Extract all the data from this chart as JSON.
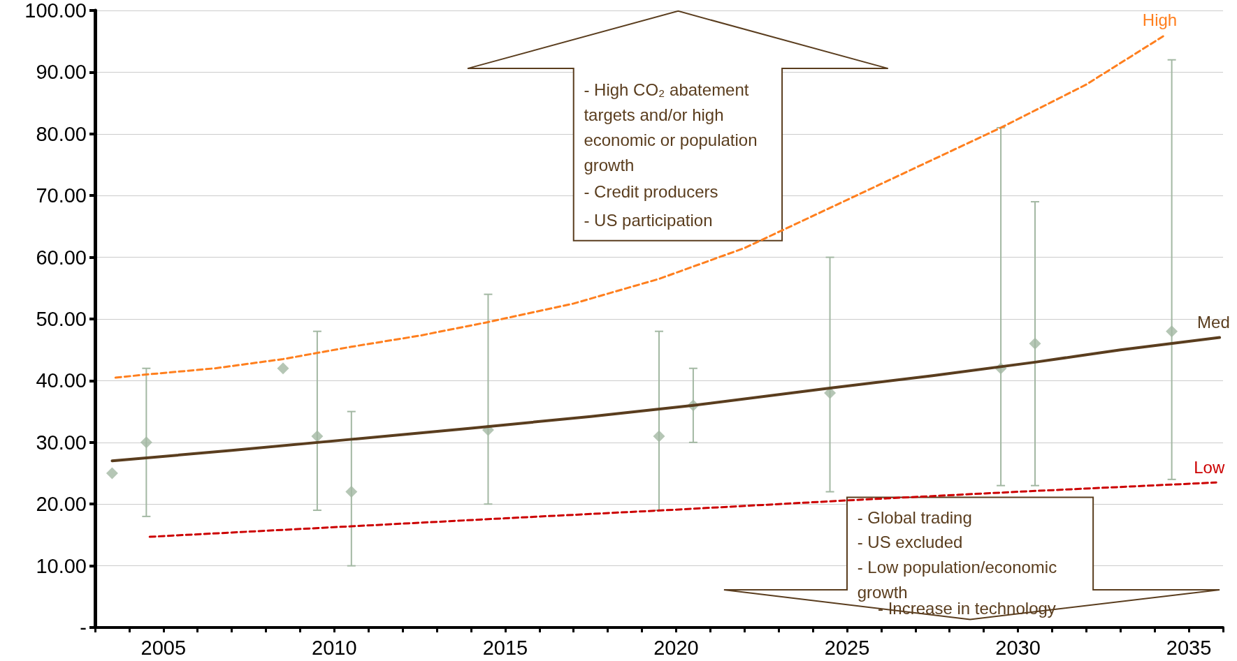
{
  "chart_data": {
    "type": "scatter",
    "annotations": [
      "- High CO₂ abatement targets and/or high economic or population growth",
      "- Credit producers",
      "- US participation",
      "- Global trading",
      "- US excluded",
      "- Low population/economic growth",
      "- Increase in technology"
    ],
    "xlim": [
      2003,
      2036
    ],
    "xticks": [
      {
        "value": 2003,
        "label": null
      },
      {
        "value": 2004,
        "label": null
      },
      2005,
      {
        "value": 2006,
        "label": null
      },
      {
        "value": 2007,
        "label": null
      },
      {
        "value": 2008,
        "label": null
      },
      {
        "value": 2009,
        "label": null
      },
      2010,
      {
        "value": 2011,
        "label": null
      },
      {
        "value": 2012,
        "label": null
      },
      {
        "value": 2013,
        "label": null
      },
      {
        "value": 2014,
        "label": null
      },
      2015,
      {
        "value": 2016,
        "label": null
      },
      {
        "value": 2017,
        "label": null
      },
      {
        "value": 2018,
        "label": null
      },
      {
        "value": 2019,
        "label": null
      },
      2020,
      {
        "value": 2021,
        "label": null
      },
      {
        "value": 2022,
        "label": null
      },
      {
        "value": 2023,
        "label": null
      },
      {
        "value": 2024,
        "label": null
      },
      2025,
      {
        "value": 2026,
        "label": null
      },
      {
        "value": 2027,
        "label": null
      },
      {
        "value": 2028,
        "label": null
      },
      {
        "value": 2029,
        "label": null
      },
      2030,
      {
        "value": 2031,
        "label": null
      },
      {
        "value": 2032,
        "label": null
      },
      {
        "value": 2033,
        "label": null
      },
      {
        "value": 2034,
        "label": null
      },
      2035,
      {
        "value": 2036,
        "label": null
      }
    ],
    "ylim": [
      0,
      100
    ],
    "yticks": [
      {
        "value": 0,
        "label": "-"
      },
      {
        "value": 10,
        "label": "10.00"
      },
      {
        "value": 20,
        "label": "20.00"
      },
      {
        "value": 30,
        "label": "30.00"
      },
      {
        "value": 40,
        "label": "40.00"
      },
      {
        "value": 50,
        "label": "50.00"
      },
      {
        "value": 60,
        "label": "60.00"
      },
      {
        "value": 70,
        "label": "70.00"
      },
      {
        "value": 80,
        "label": "80.00"
      },
      {
        "value": 90,
        "label": "90.00"
      },
      {
        "value": 100,
        "label": "100.00"
      }
    ],
    "grid": "y",
    "series": [
      {
        "color": "#a3b8a3",
        "marker": "diamond",
        "x": [
          2003.5,
          2004.5,
          2008.5,
          2009.5,
          2010.5,
          2014.5,
          2019.5,
          2020.5,
          2024.5,
          2029.5,
          2030.5,
          2034.5
        ],
        "values": [
          25,
          30,
          42,
          31,
          22,
          32,
          31,
          36,
          38,
          42,
          46,
          48
        ],
        "errors": [
          null,
          [
            18,
            42
          ],
          null,
          [
            19,
            48
          ],
          [
            10,
            35
          ],
          [
            20,
            54
          ],
          [
            19,
            48
          ],
          [
            30,
            42
          ],
          [
            22,
            60
          ],
          [
            23,
            81
          ],
          [
            23,
            69
          ],
          [
            24,
            92
          ]
        ]
      },
      {
        "type": "line",
        "name": "High",
        "color": "#ff7f1e",
        "marker": "none",
        "line_style": "dashed",
        "x": [
          2003.6,
          2004.5,
          2006.5,
          2008.5,
          2010.5,
          2012.5,
          2014.5,
          2017,
          2019.5,
          2022,
          2024.5,
          2027,
          2029.5,
          2032,
          2034.3
        ],
        "values": [
          40.5,
          41,
          42,
          43.5,
          45.5,
          47.3,
          49.5,
          52.5,
          56.5,
          61.5,
          68,
          74.5,
          81,
          88,
          96
        ]
      },
      {
        "type": "line",
        "name": "Med",
        "color": "#5a3d1e",
        "marker": "none",
        "line_style": "solid",
        "x": [
          2003.5,
          2007,
          2010.5,
          2014,
          2017.5,
          2020.5,
          2024.5,
          2027.5,
          2030.5,
          2033,
          2035.9
        ],
        "values": [
          27,
          28.7,
          30.5,
          32.3,
          34.2,
          36,
          38.8,
          40.8,
          43,
          45,
          47
        ]
      },
      {
        "type": "line",
        "name": "Low",
        "color": "#cc0000",
        "marker": "none",
        "line_style": "dashed",
        "x": [
          2004.6,
          2010.5,
          2015,
          2020,
          2025,
          2030,
          2035.8
        ],
        "values": [
          14.7,
          16.4,
          17.7,
          19.1,
          20.6,
          22,
          23.5
        ]
      }
    ]
  }
}
